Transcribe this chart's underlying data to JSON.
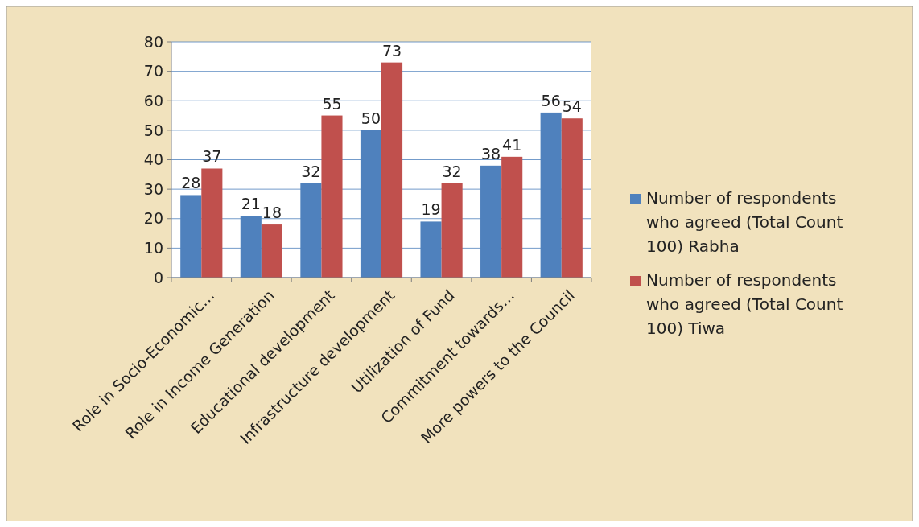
{
  "chart_data": {
    "type": "bar",
    "categories": [
      "Role in Socio-Economic…",
      "Role in Income Generation",
      "Educational development",
      "Infrastructure development",
      "Utilization of Fund",
      "Commitment towards…",
      "More powers to the Council"
    ],
    "series": [
      {
        "name": "Number of respondents who agreed (Total Count 100) Rabha",
        "color": "#4f81bd",
        "values": [
          28,
          21,
          32,
          50,
          19,
          38,
          56
        ]
      },
      {
        "name": "Number of respondents who agreed (Total Count 100) Tiwa",
        "color": "#c0504d",
        "values": [
          37,
          18,
          55,
          73,
          32,
          41,
          54
        ]
      }
    ],
    "ylim": [
      0,
      80
    ],
    "yticks": [
      0,
      10,
      20,
      30,
      40,
      50,
      60,
      70,
      80
    ],
    "grid": "y",
    "legend": "right",
    "data_labels": true
  }
}
